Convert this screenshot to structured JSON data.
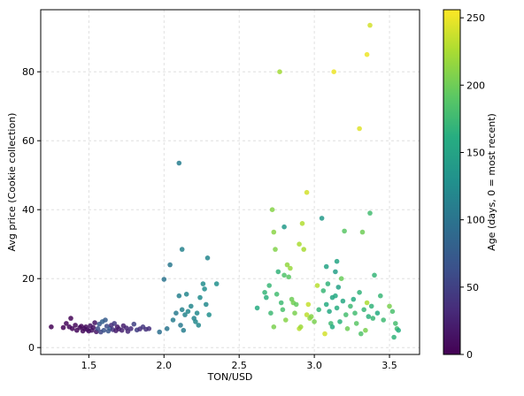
{
  "chart_data": {
    "type": "scatter",
    "title": "",
    "xlabel": "TON/USD",
    "ylabel": "Avg price (Cookie collection)",
    "xlim": [
      1.18,
      3.7
    ],
    "ylim": [
      -2,
      98
    ],
    "xticks": [
      1.5,
      2.0,
      2.5,
      3.0,
      3.5
    ],
    "xtick_labels": [
      "1.5",
      "2.0",
      "2.5",
      "3.0",
      "3.5"
    ],
    "yticks": [
      0,
      20,
      40,
      60,
      80
    ],
    "ytick_labels": [
      "0",
      "20",
      "40",
      "60",
      "80"
    ],
    "grid": true,
    "colorbar": {
      "label": "Age (days, 0 = most recent)",
      "range": [
        0,
        256
      ],
      "ticks": [
        0,
        50,
        100,
        150,
        200,
        250
      ],
      "tick_labels": [
        "0",
        "50",
        "100",
        "150",
        "200",
        "250"
      ],
      "colormap": "viridis"
    },
    "points": [
      [
        1.25,
        6.0,
        2
      ],
      [
        1.33,
        5.8,
        3
      ],
      [
        1.35,
        7.0,
        4
      ],
      [
        1.37,
        6.0,
        5
      ],
      [
        1.38,
        8.5,
        3
      ],
      [
        1.39,
        5.5,
        4
      ],
      [
        1.41,
        6.5,
        6
      ],
      [
        1.42,
        5.0,
        5
      ],
      [
        1.44,
        5.8,
        7
      ],
      [
        1.45,
        6.2,
        6
      ],
      [
        1.46,
        4.8,
        8
      ],
      [
        1.47,
        5.5,
        9
      ],
      [
        1.48,
        6.0,
        10
      ],
      [
        1.49,
        5.2,
        12
      ],
      [
        1.5,
        4.8,
        11
      ],
      [
        1.51,
        6.3,
        13
      ],
      [
        1.52,
        5.0,
        14
      ],
      [
        1.53,
        5.8,
        12
      ],
      [
        1.54,
        7.2,
        15
      ],
      [
        1.55,
        4.6,
        16
      ],
      [
        1.56,
        5.5,
        60
      ],
      [
        1.57,
        6.8,
        70
      ],
      [
        1.58,
        4.5,
        55
      ],
      [
        1.59,
        7.5,
        80
      ],
      [
        1.6,
        5.0,
        65
      ],
      [
        1.61,
        8.0,
        75
      ],
      [
        1.62,
        6.2,
        58
      ],
      [
        1.63,
        4.8,
        68
      ],
      [
        1.64,
        5.6,
        72
      ],
      [
        1.65,
        6.5,
        35
      ],
      [
        1.66,
        5.2,
        40
      ],
      [
        1.67,
        7.0,
        45
      ],
      [
        1.68,
        4.9,
        20
      ],
      [
        1.69,
        6.0,
        18
      ],
      [
        1.7,
        5.4,
        22
      ],
      [
        1.72,
        5.0,
        25
      ],
      [
        1.73,
        6.3,
        24
      ],
      [
        1.75,
        5.7,
        28
      ],
      [
        1.76,
        4.7,
        30
      ],
      [
        1.78,
        5.5,
        32
      ],
      [
        1.8,
        6.8,
        50
      ],
      [
        1.82,
        5.1,
        48
      ],
      [
        1.84,
        5.4,
        35
      ],
      [
        1.86,
        6.0,
        42
      ],
      [
        1.88,
        5.3,
        38
      ],
      [
        1.9,
        5.5,
        36
      ],
      [
        1.97,
        4.5,
        95
      ],
      [
        2.0,
        19.8,
        100
      ],
      [
        2.02,
        5.5,
        102
      ],
      [
        2.04,
        24.0,
        104
      ],
      [
        2.06,
        8.0,
        108
      ],
      [
        2.08,
        10.0,
        106
      ],
      [
        2.1,
        53.5,
        110
      ],
      [
        2.1,
        15.0,
        112
      ],
      [
        2.11,
        6.5,
        105
      ],
      [
        2.12,
        28.5,
        115
      ],
      [
        2.12,
        11.0,
        114
      ],
      [
        2.13,
        5.0,
        110
      ],
      [
        2.14,
        9.5,
        116
      ],
      [
        2.15,
        15.5,
        118
      ],
      [
        2.16,
        10.5,
        120
      ],
      [
        2.18,
        12.0,
        119
      ],
      [
        2.2,
        8.5,
        117
      ],
      [
        2.21,
        7.5,
        121
      ],
      [
        2.22,
        10.0,
        122
      ],
      [
        2.23,
        6.5,
        120
      ],
      [
        2.24,
        14.5,
        124
      ],
      [
        2.26,
        18.5,
        125
      ],
      [
        2.27,
        17.0,
        126
      ],
      [
        2.28,
        12.5,
        122
      ],
      [
        2.29,
        26.0,
        118
      ],
      [
        2.3,
        9.5,
        127
      ],
      [
        2.35,
        18.5,
        128
      ],
      [
        2.62,
        11.5,
        160
      ],
      [
        2.67,
        16.0,
        170
      ],
      [
        2.68,
        14.5,
        165
      ],
      [
        2.7,
        18.0,
        172
      ],
      [
        2.71,
        10.0,
        175
      ],
      [
        2.72,
        40.0,
        210
      ],
      [
        2.73,
        33.5,
        212
      ],
      [
        2.73,
        6.0,
        205
      ],
      [
        2.74,
        28.5,
        208
      ],
      [
        2.75,
        15.5,
        178
      ],
      [
        2.76,
        22.0,
        168
      ],
      [
        2.77,
        80.0,
        222
      ],
      [
        2.78,
        13.0,
        176
      ],
      [
        2.79,
        11.0,
        182
      ],
      [
        2.8,
        35.0,
        140
      ],
      [
        2.8,
        21.0,
        185
      ],
      [
        2.81,
        8.0,
        210
      ],
      [
        2.82,
        24.0,
        215
      ],
      [
        2.83,
        20.5,
        190
      ],
      [
        2.84,
        23.0,
        218
      ],
      [
        2.85,
        14.0,
        200
      ],
      [
        2.86,
        13.0,
        202
      ],
      [
        2.87,
        10.0,
        205
      ],
      [
        2.88,
        12.5,
        195
      ],
      [
        2.9,
        30.0,
        225
      ],
      [
        2.9,
        5.5,
        230
      ],
      [
        2.91,
        6.0,
        220
      ],
      [
        2.92,
        36.0,
        228
      ],
      [
        2.93,
        28.5,
        224
      ],
      [
        2.95,
        45.0,
        240
      ],
      [
        2.95,
        9.5,
        232
      ],
      [
        2.96,
        12.5,
        235
      ],
      [
        2.97,
        8.5,
        215
      ],
      [
        2.98,
        9.0,
        210
      ],
      [
        3.0,
        7.5,
        205
      ],
      [
        3.02,
        18.0,
        230
      ],
      [
        3.03,
        11.0,
        170
      ],
      [
        3.05,
        37.5,
        140
      ],
      [
        3.06,
        16.5,
        172
      ],
      [
        3.07,
        4.0,
        240
      ],
      [
        3.08,
        23.5,
        150
      ],
      [
        3.08,
        12.5,
        160
      ],
      [
        3.09,
        18.5,
        168
      ],
      [
        3.1,
        10.5,
        155
      ],
      [
        3.11,
        7.0,
        175
      ],
      [
        3.12,
        14.5,
        152
      ],
      [
        3.12,
        6.0,
        160
      ],
      [
        3.13,
        80.0,
        250
      ],
      [
        3.14,
        22.0,
        145
      ],
      [
        3.14,
        15.0,
        158
      ],
      [
        3.15,
        25.0,
        152
      ],
      [
        3.15,
        11.5,
        162
      ],
      [
        3.16,
        17.5,
        148
      ],
      [
        3.17,
        7.5,
        165
      ],
      [
        3.18,
        20.0,
        198
      ],
      [
        3.19,
        13.5,
        156
      ],
      [
        3.2,
        33.8,
        190
      ],
      [
        3.21,
        9.5,
        180
      ],
      [
        3.22,
        5.5,
        200
      ],
      [
        3.24,
        12.0,
        175
      ],
      [
        3.26,
        14.0,
        160
      ],
      [
        3.27,
        10.0,
        178
      ],
      [
        3.28,
        7.0,
        190
      ],
      [
        3.3,
        63.5,
        245
      ],
      [
        3.3,
        16.0,
        168
      ],
      [
        3.31,
        4.0,
        185
      ],
      [
        3.32,
        33.5,
        200
      ],
      [
        3.33,
        11.0,
        172
      ],
      [
        3.34,
        5.0,
        205
      ],
      [
        3.35,
        85.0,
        250
      ],
      [
        3.35,
        13.0,
        225
      ],
      [
        3.36,
        9.0,
        165
      ],
      [
        3.37,
        93.5,
        240
      ],
      [
        3.37,
        39.0,
        178
      ],
      [
        3.38,
        12.0,
        168
      ],
      [
        3.39,
        8.5,
        172
      ],
      [
        3.4,
        21.0,
        170
      ],
      [
        3.42,
        10.0,
        160
      ],
      [
        3.44,
        15.0,
        172
      ],
      [
        3.46,
        8.0,
        176
      ],
      [
        3.5,
        12.0,
        205
      ],
      [
        3.52,
        10.5,
        182
      ],
      [
        3.53,
        3.0,
        168
      ],
      [
        3.54,
        7.0,
        180
      ],
      [
        3.55,
        5.5,
        178
      ],
      [
        3.56,
        5.0,
        162
      ]
    ]
  }
}
